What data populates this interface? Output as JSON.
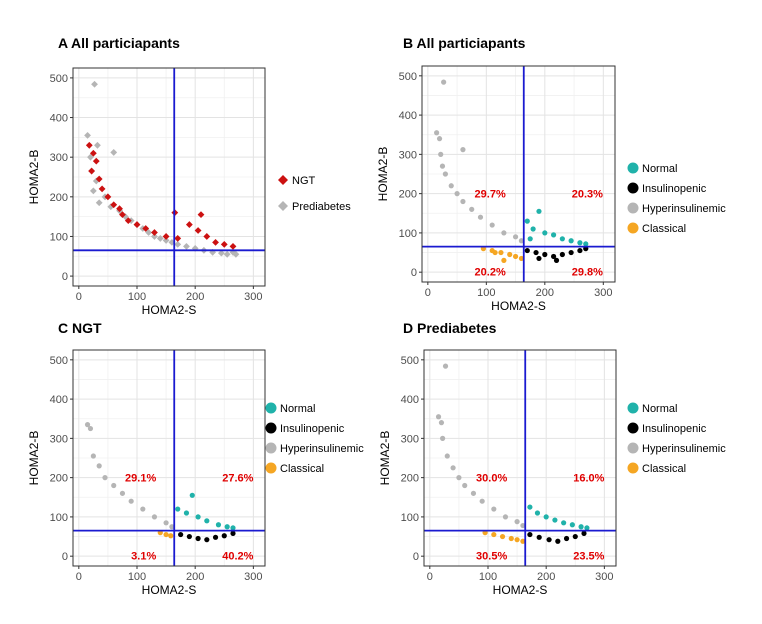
{
  "chart_data": [
    {
      "type": "scatter",
      "panel_label": "A",
      "title": "A All particiapants",
      "xlabel": "HOMA2-S",
      "ylabel": "HOMA2-B",
      "xlim": [
        -10,
        320
      ],
      "ylim": [
        -25,
        525
      ],
      "xticks": [
        0,
        100,
        200,
        300
      ],
      "yticks": [
        0,
        100,
        200,
        300,
        400,
        500
      ],
      "grid": true,
      "reference_lines": {
        "x": 164,
        "y": 65
      },
      "legend": {
        "position": "right",
        "entries": [
          {
            "label": "NGT",
            "color": "#cc1111",
            "shape": "diamond"
          },
          {
            "label": "Prediabetes",
            "color": "#b5b5b5",
            "shape": "diamond"
          }
        ]
      },
      "series": [
        {
          "name": "Prediabetes",
          "color": "#b5b5b5",
          "points": [
            [
              27,
              484
            ],
            [
              15,
              355
            ],
            [
              32,
              330
            ],
            [
              20,
              300
            ],
            [
              60,
              312
            ],
            [
              22,
              265
            ],
            [
              30,
              240
            ],
            [
              25,
              215
            ],
            [
              45,
              200
            ],
            [
              35,
              185
            ],
            [
              55,
              175
            ],
            [
              70,
              165
            ],
            [
              80,
              150
            ],
            [
              90,
              140
            ],
            [
              100,
              130
            ],
            [
              110,
              120
            ],
            [
              120,
              110
            ],
            [
              130,
              100
            ],
            [
              140,
              95
            ],
            [
              150,
              90
            ],
            [
              160,
              85
            ],
            [
              170,
              80
            ],
            [
              185,
              75
            ],
            [
              200,
              70
            ],
            [
              215,
              65
            ],
            [
              230,
              60
            ],
            [
              245,
              58
            ],
            [
              255,
              55
            ],
            [
              265,
              60
            ],
            [
              270,
              55
            ]
          ]
        },
        {
          "name": "NGT",
          "color": "#cc1111",
          "points": [
            [
              18,
              330
            ],
            [
              25,
              310
            ],
            [
              30,
              290
            ],
            [
              22,
              265
            ],
            [
              35,
              245
            ],
            [
              40,
              220
            ],
            [
              50,
              200
            ],
            [
              60,
              180
            ],
            [
              70,
              170
            ],
            [
              75,
              155
            ],
            [
              85,
              140
            ],
            [
              100,
              130
            ],
            [
              115,
              120
            ],
            [
              130,
              110
            ],
            [
              165,
              160
            ],
            [
              190,
              130
            ],
            [
              210,
              155
            ],
            [
              205,
              115
            ],
            [
              220,
              100
            ],
            [
              235,
              85
            ],
            [
              250,
              80
            ],
            [
              265,
              75
            ],
            [
              170,
              95
            ],
            [
              150,
              100
            ]
          ]
        }
      ]
    },
    {
      "type": "scatter",
      "panel_label": "B",
      "title": "B All particiapants",
      "xlabel": "HOMA2-S",
      "ylabel": "HOMA2-B",
      "xlim": [
        -10,
        320
      ],
      "ylim": [
        -25,
        525
      ],
      "xticks": [
        0,
        100,
        200,
        300
      ],
      "yticks": [
        0,
        100,
        200,
        300,
        400,
        500
      ],
      "grid": true,
      "reference_lines": {
        "x": 164,
        "y": 65
      },
      "quadrant_labels": {
        "top_left": "29.7%",
        "top_right": "20.3%",
        "bottom_left": "20.2%",
        "bottom_right": "29.8%"
      },
      "legend": {
        "position": "right",
        "entries": [
          {
            "label": "Normal",
            "color": "#20b2aa",
            "shape": "circle"
          },
          {
            "label": "Insulinopenic",
            "color": "#000000",
            "shape": "circle"
          },
          {
            "label": "Hyperinsulinemic",
            "color": "#b5b5b5",
            "shape": "circle"
          },
          {
            "label": "Classical",
            "color": "#f5a623",
            "shape": "circle"
          }
        ]
      },
      "series": [
        {
          "name": "Hyperinsulinemic",
          "color": "#b5b5b5",
          "points": [
            [
              27,
              484
            ],
            [
              15,
              355
            ],
            [
              20,
              340
            ],
            [
              22,
              300
            ],
            [
              60,
              312
            ],
            [
              30,
              250
            ],
            [
              40,
              220
            ],
            [
              50,
              200
            ],
            [
              60,
              180
            ],
            [
              75,
              160
            ],
            [
              90,
              140
            ],
            [
              110,
              120
            ],
            [
              130,
              100
            ],
            [
              150,
              90
            ],
            [
              160,
              80
            ],
            [
              25,
              270
            ]
          ]
        },
        {
          "name": "Normal",
          "color": "#20b2aa",
          "points": [
            [
              170,
              130
            ],
            [
              180,
              110
            ],
            [
              190,
              155
            ],
            [
              200,
              100
            ],
            [
              215,
              95
            ],
            [
              230,
              85
            ],
            [
              245,
              80
            ],
            [
              260,
              75
            ],
            [
              270,
              72
            ],
            [
              175,
              85
            ]
          ]
        },
        {
          "name": "Insulinopenic",
          "color": "#000000",
          "points": [
            [
              170,
              55
            ],
            [
              185,
              50
            ],
            [
              200,
              45
            ],
            [
              215,
              40
            ],
            [
              230,
              45
            ],
            [
              245,
              50
            ],
            [
              260,
              55
            ],
            [
              270,
              60
            ],
            [
              190,
              35
            ],
            [
              220,
              30
            ]
          ]
        },
        {
          "name": "Classical",
          "color": "#f5a623",
          "points": [
            [
              95,
              60
            ],
            [
              110,
              55
            ],
            [
              125,
              50
            ],
            [
              140,
              45
            ],
            [
              150,
              40
            ],
            [
              160,
              35
            ],
            [
              130,
              30
            ],
            [
              115,
              50
            ]
          ]
        }
      ]
    },
    {
      "type": "scatter",
      "panel_label": "C",
      "title": "C NGT",
      "xlabel": "HOMA2-S",
      "ylabel": "HOMA2-B",
      "xlim": [
        -10,
        320
      ],
      "ylim": [
        -25,
        525
      ],
      "xticks": [
        0,
        100,
        200,
        300
      ],
      "yticks": [
        0,
        100,
        200,
        300,
        400,
        500
      ],
      "grid": true,
      "reference_lines": {
        "x": 164,
        "y": 65
      },
      "quadrant_labels": {
        "top_left": "29.1%",
        "top_right": "27.6%",
        "bottom_left": "3.1%",
        "bottom_right": "40.2%"
      },
      "legend": {
        "position": "right",
        "entries": [
          {
            "label": "Normal",
            "color": "#20b2aa",
            "shape": "circle"
          },
          {
            "label": "Insulinopenic",
            "color": "#000000",
            "shape": "circle"
          },
          {
            "label": "Hyperinsulinemic",
            "color": "#b5b5b5",
            "shape": "circle"
          },
          {
            "label": "Classical",
            "color": "#f5a623",
            "shape": "circle"
          }
        ]
      },
      "series": [
        {
          "name": "Hyperinsulinemic",
          "color": "#b5b5b5",
          "points": [
            [
              15,
              335
            ],
            [
              20,
              325
            ],
            [
              25,
              255
            ],
            [
              35,
              230
            ],
            [
              45,
              200
            ],
            [
              60,
              180
            ],
            [
              75,
              160
            ],
            [
              90,
              140
            ],
            [
              110,
              120
            ],
            [
              130,
              100
            ],
            [
              150,
              85
            ],
            [
              160,
              75
            ]
          ]
        },
        {
          "name": "Normal",
          "color": "#20b2aa",
          "points": [
            [
              170,
              120
            ],
            [
              185,
              110
            ],
            [
              195,
              155
            ],
            [
              205,
              100
            ],
            [
              220,
              90
            ],
            [
              240,
              80
            ],
            [
              255,
              75
            ],
            [
              265,
              72
            ]
          ]
        },
        {
          "name": "Insulinopenic",
          "color": "#000000",
          "points": [
            [
              175,
              55
            ],
            [
              190,
              50
            ],
            [
              205,
              45
            ],
            [
              220,
              42
            ],
            [
              235,
              48
            ],
            [
              250,
              52
            ],
            [
              265,
              58
            ]
          ]
        },
        {
          "name": "Classical",
          "color": "#f5a623",
          "points": [
            [
              140,
              60
            ],
            [
              150,
              55
            ],
            [
              158,
              52
            ]
          ]
        }
      ]
    },
    {
      "type": "scatter",
      "panel_label": "D",
      "title": "D Prediabetes",
      "xlabel": "HOMA2-S",
      "ylabel": "HOMA2-B",
      "xlim": [
        -10,
        320
      ],
      "ylim": [
        -25,
        525
      ],
      "xticks": [
        0,
        100,
        200,
        300
      ],
      "yticks": [
        0,
        100,
        200,
        300,
        400,
        500
      ],
      "grid": true,
      "reference_lines": {
        "x": 164,
        "y": 65
      },
      "quadrant_labels": {
        "top_left": "30.0%",
        "top_right": "16.0%",
        "bottom_left": "30.5%",
        "bottom_right": "23.5%"
      },
      "legend": {
        "position": "right",
        "entries": [
          {
            "label": "Normal",
            "color": "#20b2aa",
            "shape": "circle"
          },
          {
            "label": "Insulinopenic",
            "color": "#000000",
            "shape": "circle"
          },
          {
            "label": "Hyperinsulinemic",
            "color": "#b5b5b5",
            "shape": "circle"
          },
          {
            "label": "Classical",
            "color": "#f5a623",
            "shape": "circle"
          }
        ]
      },
      "series": [
        {
          "name": "Hyperinsulinemic",
          "color": "#b5b5b5",
          "points": [
            [
              27,
              484
            ],
            [
              15,
              355
            ],
            [
              20,
              340
            ],
            [
              22,
              300
            ],
            [
              30,
              255
            ],
            [
              40,
              225
            ],
            [
              50,
              200
            ],
            [
              60,
              180
            ],
            [
              75,
              160
            ],
            [
              90,
              140
            ],
            [
              110,
              120
            ],
            [
              130,
              100
            ],
            [
              150,
              88
            ],
            [
              160,
              78
            ]
          ]
        },
        {
          "name": "Normal",
          "color": "#20b2aa",
          "points": [
            [
              172,
              125
            ],
            [
              185,
              110
            ],
            [
              200,
              100
            ],
            [
              215,
              92
            ],
            [
              230,
              85
            ],
            [
              245,
              80
            ],
            [
              260,
              75
            ],
            [
              270,
              72
            ]
          ]
        },
        {
          "name": "Insulinopenic",
          "color": "#000000",
          "points": [
            [
              172,
              55
            ],
            [
              188,
              48
            ],
            [
              205,
              42
            ],
            [
              220,
              38
            ],
            [
              235,
              45
            ],
            [
              250,
              50
            ],
            [
              265,
              58
            ]
          ]
        },
        {
          "name": "Classical",
          "color": "#f5a623",
          "points": [
            [
              95,
              60
            ],
            [
              110,
              55
            ],
            [
              125,
              50
            ],
            [
              140,
              45
            ],
            [
              150,
              42
            ],
            [
              160,
              38
            ]
          ]
        }
      ]
    }
  ]
}
